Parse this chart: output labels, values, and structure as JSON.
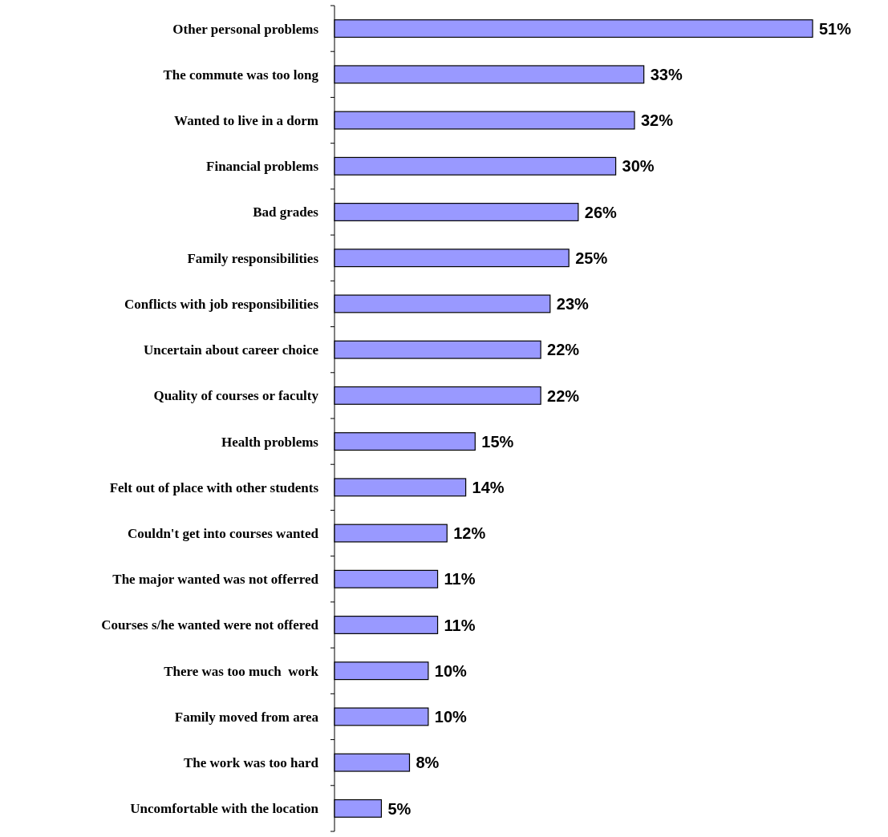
{
  "chart_data": {
    "type": "bar",
    "orientation": "horizontal",
    "categories": [
      "Other personal problems",
      "The commute was too long",
      "Wanted to live in a dorm",
      "Financial problems",
      "Bad grades",
      "Family responsibilities",
      "Conflicts with job responsibilities",
      "Uncertain about career choice",
      "Quality of courses or faculty",
      "Health problems",
      "Felt out of place with other students",
      "Couldn't get into courses wanted",
      "The major wanted was not offerred",
      "Courses s/he wanted were not offered",
      "There was too much  work",
      "Family moved from area",
      "The work was too hard",
      "Uncomfortable with the location"
    ],
    "values": [
      51,
      33,
      32,
      30,
      26,
      25,
      23,
      22,
      22,
      15,
      14,
      12,
      11,
      11,
      10,
      10,
      8,
      5
    ],
    "value_labels": [
      "51%",
      "33%",
      "32%",
      "30%",
      "26%",
      "25%",
      "23%",
      "22%",
      "22%",
      "15%",
      "14%",
      "12%",
      "11%",
      "11%",
      "10%",
      "10%",
      "8%",
      "5%"
    ],
    "color": "#9999ff"
  }
}
